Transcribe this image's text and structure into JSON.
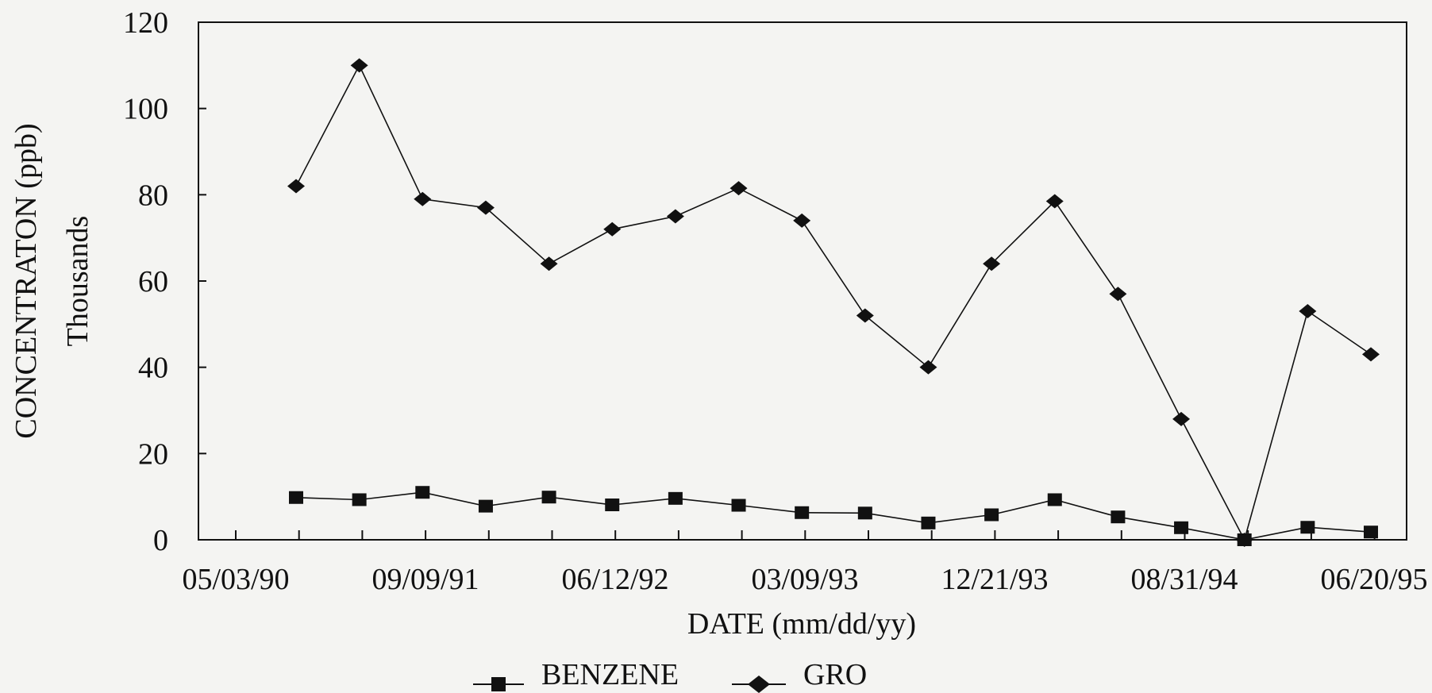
{
  "chart_data": {
    "type": "line",
    "title": "",
    "xlabel": "DATE (mm/dd/yy)",
    "ylabel": "CONCENTRATON (ppb)",
    "ylabel_units": "Thousands",
    "ylim": [
      0,
      120
    ],
    "yticks": [
      "0",
      "20",
      "40",
      "60",
      "80",
      "100",
      "120"
    ],
    "xtick_labels": [
      "05/03/90",
      "09/09/91",
      "06/12/92",
      "03/09/93",
      "12/21/93",
      "08/31/94",
      "06/20/95"
    ],
    "categories": [
      "",
      "",
      "",
      "",
      "",
      "",
      "",
      "",
      "",
      "",
      "",
      "",
      "",
      "",
      "",
      "",
      "",
      ""
    ],
    "series": [
      {
        "name": "BENZENE",
        "marker": "square",
        "values": [
          9.8,
          9.3,
          11.0,
          7.8,
          9.9,
          8.1,
          9.6,
          8.0,
          6.3,
          6.2,
          3.9,
          5.8,
          9.3,
          5.3,
          2.8,
          0.0,
          2.9,
          1.8
        ]
      },
      {
        "name": "GRO",
        "marker": "diamond",
        "values": [
          82.0,
          110.0,
          79.0,
          77.0,
          64.0,
          72.0,
          75.0,
          81.5,
          74.0,
          52.0,
          40.0,
          64.0,
          78.5,
          57.0,
          28.0,
          0.0,
          53.0,
          43.0
        ]
      }
    ],
    "grid": false,
    "legend": "bottom-center",
    "colors": {
      "line": "#111111",
      "axis": "#111111",
      "background": "#f4f4f2"
    }
  }
}
